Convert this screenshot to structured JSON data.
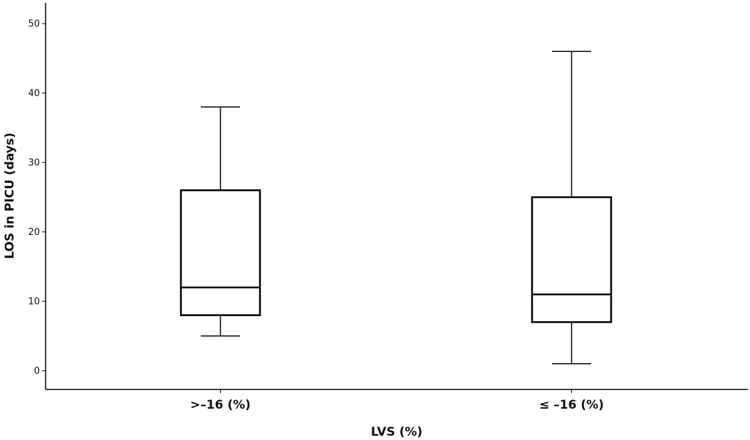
{
  "chart_data": {
    "type": "box",
    "title": "",
    "xlabel": "LVS (%)",
    "ylabel": "LOS in PICU (days)",
    "ylim": [
      -2.7,
      53
    ],
    "yticks": [
      0,
      10,
      20,
      30,
      40,
      50
    ],
    "grid": false,
    "categories": [
      ">–16 (%)",
      "≤ –16 (%)"
    ],
    "boxes": [
      {
        "category": ">–16 (%)",
        "min": 5,
        "q1": 8,
        "median": 12,
        "q3": 26,
        "max": 38
      },
      {
        "category": "≤ –16 (%)",
        "min": 1,
        "q1": 7,
        "median": 11,
        "q3": 25,
        "max": 46
      }
    ]
  }
}
